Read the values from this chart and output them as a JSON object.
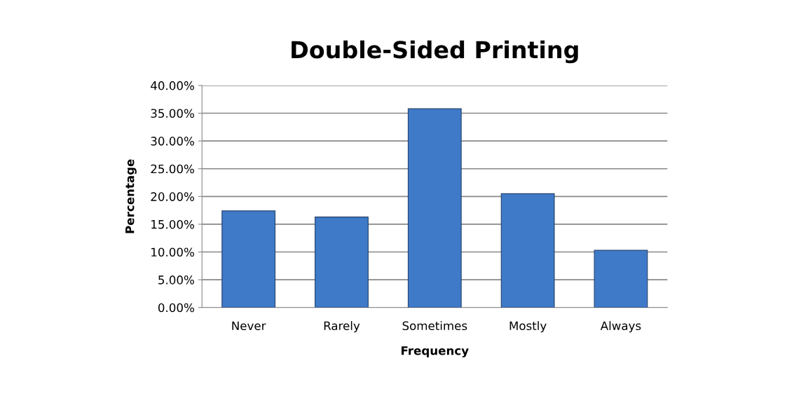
{
  "chart_data": {
    "type": "bar",
    "title": "Double-Sided Printing",
    "xlabel": "Frequency",
    "ylabel": "Percentage",
    "categories": [
      "Never",
      "Rarely",
      "Sometimes",
      "Mostly",
      "Always"
    ],
    "values": [
      17.4,
      16.3,
      35.8,
      20.5,
      10.3
    ],
    "color": "#3f7ac8",
    "ylim": [
      0,
      40
    ],
    "yticks": [
      {
        "value": 0,
        "label": "0.00%"
      },
      {
        "value": 5,
        "label": "5.00%"
      },
      {
        "value": 10,
        "label": "10.00%"
      },
      {
        "value": 15,
        "label": "15.00%"
      },
      {
        "value": 20,
        "label": "20.00%"
      },
      {
        "value": 25,
        "label": "25.00%"
      },
      {
        "value": 30,
        "label": "30.00%"
      },
      {
        "value": 35,
        "label": "35.00%"
      },
      {
        "value": 40,
        "label": "40.00%"
      }
    ],
    "grid": "y",
    "legend": false
  }
}
